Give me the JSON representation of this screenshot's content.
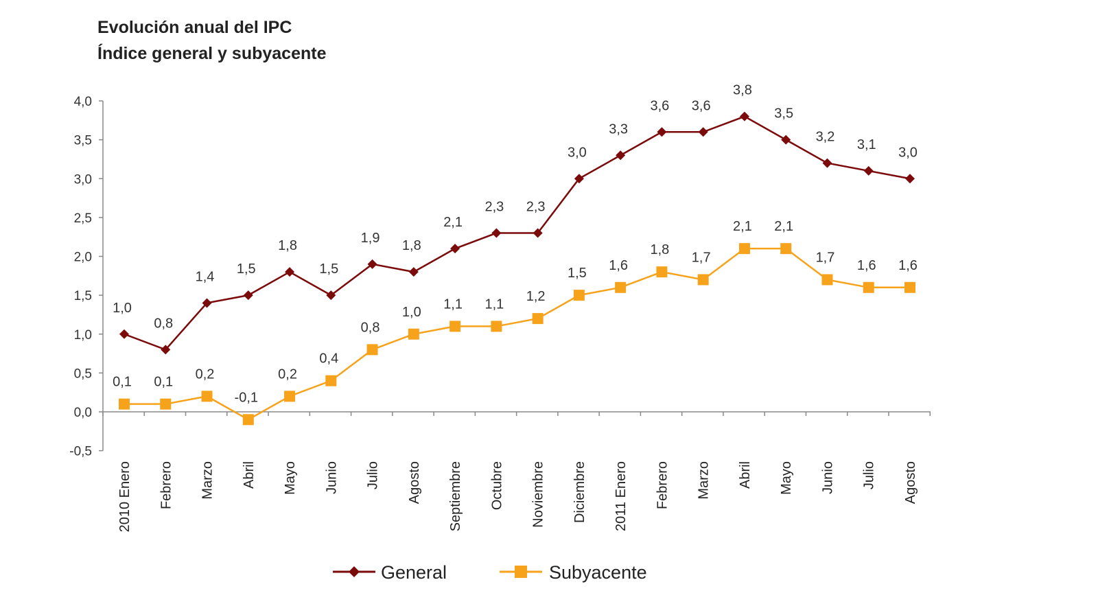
{
  "chart_data": {
    "type": "line",
    "title": "Evolución anual del IPC",
    "subtitle": "Índice general y subyacente",
    "xlabel": "",
    "ylabel": "",
    "ylim": [
      -0.5,
      4.0
    ],
    "yticks": [
      "4,0",
      "3,5",
      "3,0",
      "2,5",
      "2,0",
      "1,5",
      "1,0",
      "0,5",
      "0,0",
      "-0,5"
    ],
    "grid": false,
    "legend_position": "bottom",
    "categories": [
      "2010 Enero",
      "Febrero",
      "Marzo",
      "Abril",
      "Mayo",
      "Junio",
      "Julio",
      "Agosto",
      "Septiembre",
      "Octubre",
      "Noviembre",
      "Diciembre",
      "2011 Enero",
      "Febrero",
      "Marzo",
      "Abril",
      "Mayo",
      "Junio",
      "Julio",
      "Agosto"
    ],
    "series": [
      {
        "name": "General",
        "color": "#7b0a0a",
        "marker": "diamond",
        "values": [
          1.0,
          0.8,
          1.4,
          1.5,
          1.8,
          1.5,
          1.9,
          1.8,
          2.1,
          2.3,
          2.3,
          3.0,
          3.3,
          3.6,
          3.6,
          3.8,
          3.5,
          3.2,
          3.1,
          3.0
        ]
      },
      {
        "name": "Subyacente",
        "color": "#f7a21b",
        "marker": "square",
        "values": [
          0.1,
          0.1,
          0.2,
          -0.1,
          0.2,
          0.4,
          0.8,
          1.0,
          1.1,
          1.1,
          1.2,
          1.5,
          1.6,
          1.8,
          1.7,
          2.1,
          2.1,
          1.7,
          1.6,
          1.6
        ]
      }
    ]
  }
}
